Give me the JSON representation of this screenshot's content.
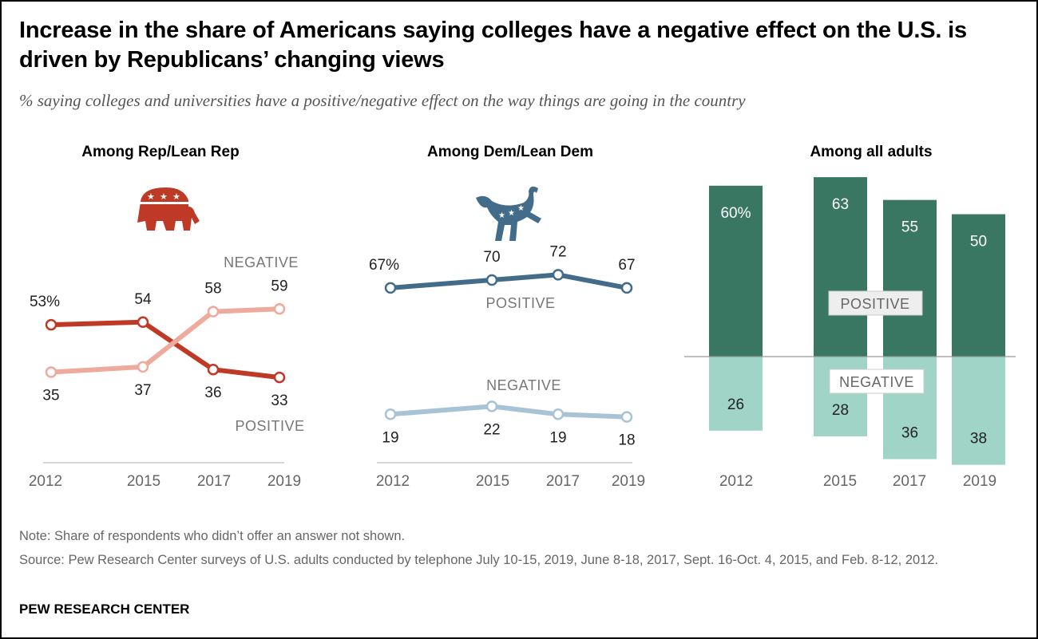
{
  "title": "Increase in the share of Americans saying colleges have a negative effect on the U.S. is driven by Republicans’ changing views",
  "subtitle": "% saying colleges and universities have a positive/negative effect on the way things are going in the country",
  "note": "Note: Share of respondents who didn’t offer an answer not shown.",
  "source": "Source: Pew Research Center surveys of U.S. adults conducted by telephone July 10-15, 2019, June 8-18, 2017, Sept. 16-Oct. 4, 2015, and Feb. 8-12, 2012.",
  "brand": "PEW RESEARCH CENTER",
  "icons": {
    "rep": "republican-elephant-icon",
    "dem": "democratic-donkey-icon"
  },
  "chart_data": [
    {
      "type": "line",
      "title": "Among Rep/Lean Rep",
      "x": [
        "2012",
        "2015",
        "2017",
        "2019"
      ],
      "series": [
        {
          "name": "POSITIVE",
          "values": [
            53,
            54,
            36,
            33
          ],
          "color": "#bf3a26"
        },
        {
          "name": "NEGATIVE",
          "values": [
            35,
            37,
            58,
            59
          ],
          "color": "#eeaa9c"
        }
      ],
      "first_label_suffix": "%"
    },
    {
      "type": "line",
      "title": "Among Dem/Lean Dem",
      "x": [
        "2012",
        "2015",
        "2017",
        "2019"
      ],
      "series": [
        {
          "name": "POSITIVE",
          "values": [
            67,
            70,
            72,
            67
          ],
          "color": "#436c8a"
        },
        {
          "name": "NEGATIVE",
          "values": [
            19,
            22,
            19,
            18
          ],
          "color": "#a9c3d6"
        }
      ],
      "first_label_suffix": "%"
    },
    {
      "type": "bar",
      "title": "Among all adults",
      "x": [
        "2012",
        "2015",
        "2017",
        "2019"
      ],
      "series": [
        {
          "name": "POSITIVE",
          "values": [
            60,
            63,
            55,
            50
          ],
          "color": "#397763"
        },
        {
          "name": "NEGATIVE",
          "values": [
            26,
            28,
            36,
            38
          ],
          "color": "#9fd4c6"
        }
      ],
      "first_label_suffix": "%"
    }
  ]
}
